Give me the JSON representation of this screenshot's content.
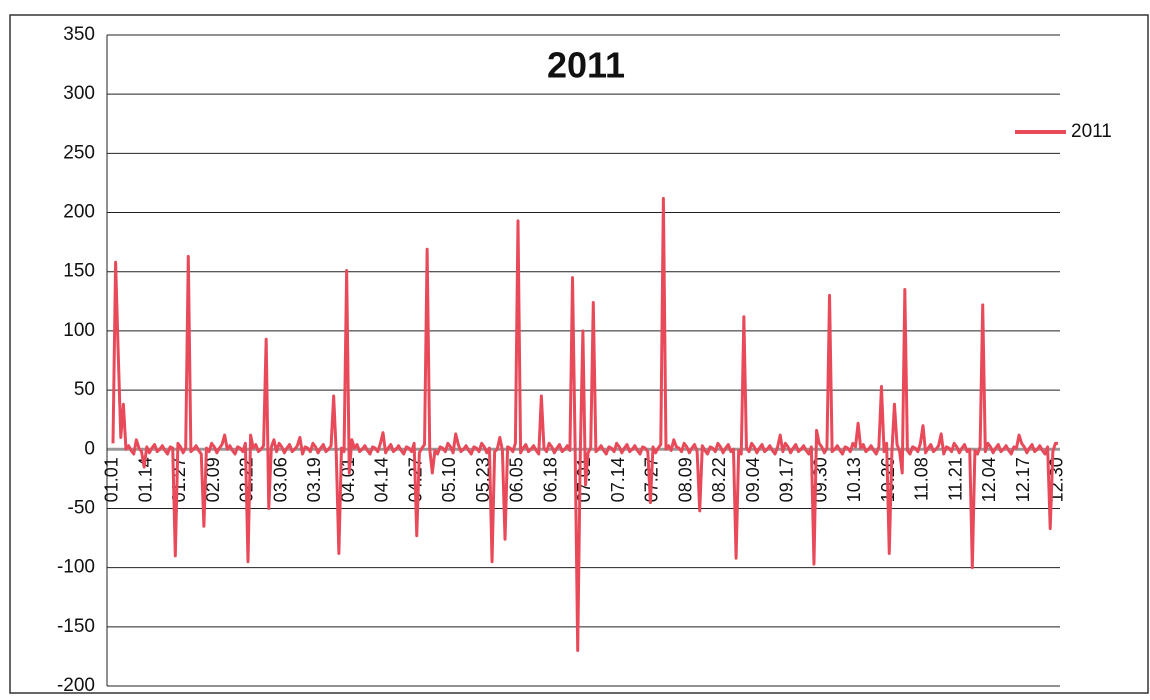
{
  "chart_data": {
    "type": "line",
    "title": "2011",
    "categories": [
      "01.01",
      null,
      null,
      null,
      null,
      null,
      null,
      null,
      null,
      null,
      null,
      null,
      null,
      "01.14",
      null,
      null,
      null,
      null,
      null,
      null,
      null,
      null,
      null,
      null,
      null,
      null,
      "01.27",
      null,
      null,
      null,
      null,
      null,
      null,
      null,
      null,
      null,
      null,
      null,
      null,
      "02.09",
      null,
      null,
      null,
      null,
      null,
      null,
      null,
      null,
      null,
      null,
      null,
      null,
      "02.22",
      null,
      null,
      null,
      null,
      null,
      null,
      null,
      null,
      null,
      null,
      null,
      null,
      "03.06",
      null,
      null,
      null,
      null,
      null,
      null,
      null,
      null,
      null,
      null,
      null,
      null,
      "03.19",
      null,
      null,
      null,
      null,
      null,
      null,
      null,
      null,
      null,
      null,
      null,
      null,
      "04.01",
      null,
      null,
      null,
      null,
      null,
      null,
      null,
      null,
      null,
      null,
      null,
      null,
      "04.14",
      null,
      null,
      null,
      null,
      null,
      null,
      null,
      null,
      null,
      null,
      null,
      null,
      "04.27",
      null,
      null,
      null,
      null,
      null,
      null,
      null,
      null,
      null,
      null,
      null,
      null,
      "05.10",
      null,
      null,
      null,
      null,
      null,
      null,
      null,
      null,
      null,
      null,
      null,
      null,
      "05.23",
      null,
      null,
      null,
      null,
      null,
      null,
      null,
      null,
      null,
      null,
      null,
      null,
      "06.05",
      null,
      null,
      null,
      null,
      null,
      null,
      null,
      null,
      null,
      null,
      null,
      null,
      "06.18",
      null,
      null,
      null,
      null,
      null,
      null,
      null,
      null,
      null,
      null,
      null,
      null,
      "07.01",
      null,
      null,
      null,
      null,
      null,
      null,
      null,
      null,
      null,
      null,
      null,
      null,
      "07.14",
      null,
      null,
      null,
      null,
      null,
      null,
      null,
      null,
      null,
      null,
      null,
      null,
      "07.27",
      null,
      null,
      null,
      null,
      null,
      null,
      null,
      null,
      null,
      null,
      null,
      null,
      "08.09",
      null,
      null,
      null,
      null,
      null,
      null,
      null,
      null,
      null,
      null,
      null,
      null,
      "08.22",
      null,
      null,
      null,
      null,
      null,
      null,
      null,
      null,
      null,
      null,
      null,
      null,
      "09.04",
      null,
      null,
      null,
      null,
      null,
      null,
      null,
      null,
      null,
      null,
      null,
      null,
      "09.17",
      null,
      null,
      null,
      null,
      null,
      null,
      null,
      null,
      null,
      null,
      null,
      null,
      "09.30",
      null,
      null,
      null,
      null,
      null,
      null,
      null,
      null,
      null,
      null,
      null,
      null,
      "10.13",
      null,
      null,
      null,
      null,
      null,
      null,
      null,
      null,
      null,
      null,
      null,
      null,
      "10.26",
      null,
      null,
      null,
      null,
      null,
      null,
      null,
      null,
      null,
      null,
      null,
      null,
      "11.08",
      null,
      null,
      null,
      null,
      null,
      null,
      null,
      null,
      null,
      null,
      null,
      null,
      "11.21",
      null,
      null,
      null,
      null,
      null,
      null,
      null,
      null,
      null,
      null,
      null,
      null,
      "12.04",
      null,
      null,
      null,
      null,
      null,
      null,
      null,
      null,
      null,
      null,
      null,
      null,
      "12.17",
      null,
      null,
      null,
      null,
      null,
      null,
      null,
      null,
      null,
      null,
      null,
      null,
      "12.30"
    ],
    "series": [
      {
        "name": "2011",
        "color": "#e84a5a",
        "values": [
          5,
          158,
          82,
          10,
          38,
          0,
          3,
          -1,
          -4,
          8,
          1,
          -2,
          -15,
          2,
          -3,
          1,
          4,
          -2,
          0,
          3,
          -1,
          -4,
          2,
          1,
          -90,
          5,
          2,
          -3,
          1,
          163,
          -2,
          0,
          3,
          -1,
          -4,
          -65,
          1,
          -2,
          5,
          2,
          -3,
          1,
          4,
          12,
          0,
          3,
          -1,
          -4,
          2,
          1,
          -2,
          5,
          -95,
          12,
          1,
          4,
          -2,
          0,
          3,
          93,
          -50,
          2,
          8,
          -2,
          5,
          2,
          -3,
          1,
          4,
          -2,
          0,
          3,
          10,
          -4,
          2,
          1,
          -2,
          5,
          2,
          -3,
          1,
          4,
          -2,
          0,
          3,
          45,
          -4,
          -88,
          1,
          -2,
          151,
          -20,
          8,
          1,
          4,
          -2,
          0,
          3,
          -1,
          -4,
          2,
          1,
          -2,
          5,
          14,
          -3,
          1,
          4,
          -2,
          0,
          3,
          -1,
          -4,
          2,
          1,
          -2,
          5,
          -73,
          -3,
          1,
          4,
          169,
          0,
          -20,
          -1,
          -4,
          2,
          1,
          -2,
          5,
          2,
          -3,
          13,
          4,
          -2,
          0,
          3,
          -1,
          -4,
          2,
          1,
          -2,
          5,
          2,
          -3,
          1,
          -95,
          -2,
          0,
          10,
          -1,
          -76,
          2,
          1,
          -2,
          5,
          193,
          -3,
          1,
          4,
          -2,
          0,
          3,
          -1,
          -4,
          45,
          1,
          -2,
          5,
          2,
          -3,
          1,
          4,
          -2,
          0,
          3,
          -1,
          145,
          2,
          -170,
          -2,
          100,
          -30,
          -3,
          1,
          124,
          -2,
          0,
          3,
          -1,
          -4,
          2,
          1,
          -2,
          5,
          2,
          -3,
          1,
          4,
          -2,
          0,
          3,
          -1,
          -4,
          2,
          1,
          -2,
          -45,
          2,
          -3,
          1,
          4,
          212,
          0,
          3,
          -1,
          8,
          2,
          1,
          -2,
          5,
          2,
          -3,
          1,
          4,
          -2,
          -52,
          3,
          -1,
          -4,
          2,
          1,
          -2,
          5,
          2,
          -3,
          1,
          4,
          -2,
          0,
          -92,
          -1,
          -4,
          112,
          1,
          -2,
          5,
          2,
          -3,
          1,
          4,
          -2,
          0,
          3,
          -1,
          -4,
          2,
          12,
          -2,
          5,
          2,
          -3,
          1,
          4,
          -2,
          0,
          3,
          -1,
          -4,
          2,
          -97,
          16,
          5,
          2,
          -3,
          1,
          130,
          -2,
          0,
          3,
          -1,
          -4,
          2,
          1,
          -2,
          5,
          2,
          22,
          1,
          4,
          -2,
          0,
          3,
          -1,
          -4,
          2,
          53,
          -2,
          5,
          -88,
          -3,
          38,
          4,
          -2,
          -20,
          135,
          -1,
          -4,
          2,
          1,
          -2,
          5,
          20,
          -3,
          1,
          4,
          -2,
          0,
          3,
          13,
          -4,
          2,
          1,
          -2,
          5,
          2,
          -3,
          1,
          4,
          -2,
          0,
          -100,
          -1,
          -4,
          2,
          122,
          -2,
          5,
          2,
          -3,
          1,
          4,
          -2,
          0,
          3,
          -1,
          -4,
          2,
          1,
          12,
          5,
          2,
          -3,
          1,
          4,
          -2,
          0,
          3,
          -1,
          -4,
          2,
          -67,
          -2,
          5,
          5
        ]
      }
    ],
    "ylim": [
      -200,
      350
    ],
    "yticks": [
      -200,
      -150,
      -100,
      -50,
      0,
      50,
      100,
      150,
      200,
      250,
      300,
      350
    ],
    "grid": true,
    "legend": "right"
  }
}
